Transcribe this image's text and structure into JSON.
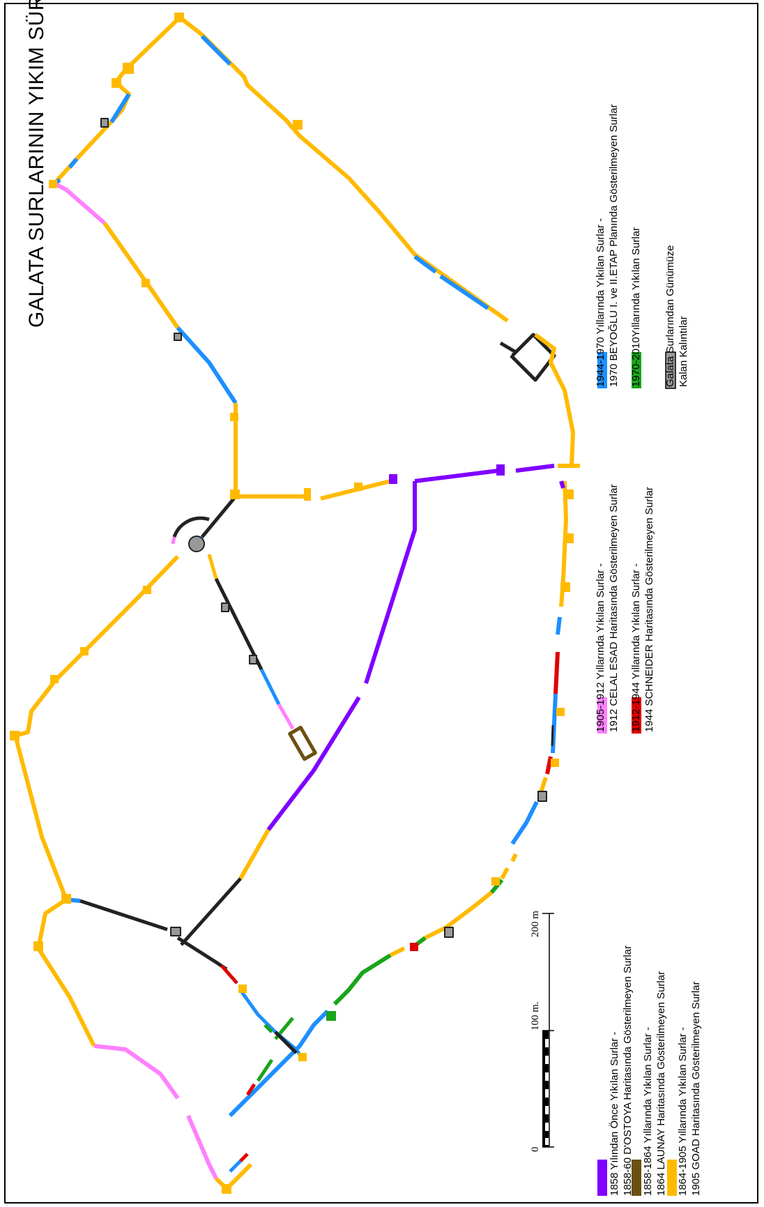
{
  "title": "GALATA SURLARININ YIKIM SÜRECİ",
  "colors": {
    "before_1858": "#7f00ff",
    "y1858_1864": "#6b5010",
    "y1864_1905": "#ffba00",
    "y1905_1912": "#ff80ff",
    "y1912_1944": "#e00000",
    "y1944_1970": "#1e8fff",
    "y1970_2010": "#1aa51a",
    "remains": "#999999",
    "outline": "#222222"
  },
  "legend": [
    {
      "key": "before_1858",
      "line1": "1858 Yılından Önce Yıkılan Surlar -",
      "line2": "1858-60 D'OSTOYA Haritasında Gösterilmeyen Surlar"
    },
    {
      "key": "y1858_1864",
      "line1": "1858-1864 Yıllarında Yıkılan Surlar -",
      "line2": "1864 LAUNAY Haritasında Gösterilmeyen Surlar"
    },
    {
      "key": "y1864_1905",
      "line1": "1864-1905 Yıllarında Yıkılan Surlar -",
      "line2": "1905 GOAD Haritasında Gösterilmeyen Surlar"
    },
    {
      "key": "y1905_1912",
      "line1": "1905-1912 Yıllarında Yıkılan Surlar -",
      "line2": "1912 CELAL ESAD Haritasında Gösterilmeyen Surlar"
    },
    {
      "key": "y1912_1944",
      "line1": "1912-1944 Yıllarında Yıkılan Surlar -",
      "line2": "1944 SCHNEIDER Haritasında Gösterilmeyen Surlar"
    },
    {
      "key": "y1944_1970",
      "line1": "1944-1970 Yıllarında Yıkılan Surlar -",
      "line2": "1970 BEYOĞLU I. ve II.ETAP Planında Gösterilmeyen Surlar"
    },
    {
      "key": "y1970_2010",
      "line1": "1970-2010Yıllarında Yıkılan Surlar",
      "line2": ""
    },
    {
      "key": "remains",
      "line1": "Galata Surlarından Günümüze",
      "line2": "Kalan Kalıntılar"
    }
  ],
  "scale": {
    "labels": [
      "0",
      "100 m.",
      "200 m"
    ]
  }
}
